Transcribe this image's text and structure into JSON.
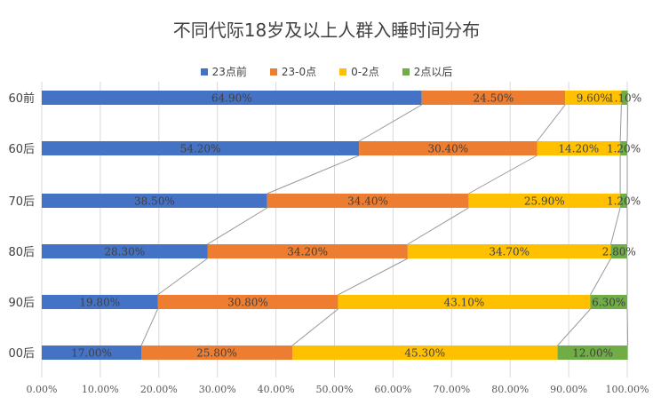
{
  "chart_data": {
    "type": "bar",
    "orientation": "horizontal",
    "stacked": "percent",
    "title": "不同代际18岁及以上人群入睡时间分布",
    "categories": [
      "60前",
      "60后",
      "70后",
      "80后",
      "90后",
      "00后"
    ],
    "series": [
      {
        "name": "23点前",
        "color": "#4472C4",
        "values": [
          64.9,
          54.2,
          38.5,
          28.3,
          19.8,
          17.0
        ],
        "labels": [
          "64.90%",
          "54.20%",
          "38.50%",
          "28.30%",
          "19.80%",
          "17.00%"
        ]
      },
      {
        "name": "23-0点",
        "color": "#ED7D31",
        "values": [
          24.5,
          30.4,
          34.4,
          34.2,
          30.8,
          25.8
        ],
        "labels": [
          "24.50%",
          "30.40%",
          "34.40%",
          "34.20%",
          "30.80%",
          "25.80%"
        ]
      },
      {
        "name": "0-2点",
        "color": "#FFC000",
        "values": [
          9.6,
          14.2,
          25.9,
          34.7,
          43.1,
          45.3
        ],
        "labels": [
          "9.60%",
          "14.20%",
          "25.90%",
          "34.70%",
          "43.10%",
          "45.30%"
        ]
      },
      {
        "name": "2点以后",
        "color": "#70AD47",
        "values": [
          1.1,
          1.2,
          1.2,
          2.8,
          6.3,
          12.0
        ],
        "labels": [
          "1.10%",
          "1.20%",
          "1.20%",
          "2.80%",
          "6.30%",
          "12.00%"
        ]
      }
    ],
    "xaxis": {
      "range": [
        0,
        100
      ],
      "ticks": [
        0,
        10,
        20,
        30,
        40,
        50,
        60,
        70,
        80,
        90,
        100
      ],
      "tick_labels": [
        "0.00%",
        "10.00%",
        "20.00%",
        "30.00%",
        "40.00%",
        "50.00%",
        "60.00%",
        "70.00%",
        "80.00%",
        "90.00%",
        "100.00%"
      ]
    },
    "grid": true,
    "legend_position": "top",
    "series_lines": true
  }
}
